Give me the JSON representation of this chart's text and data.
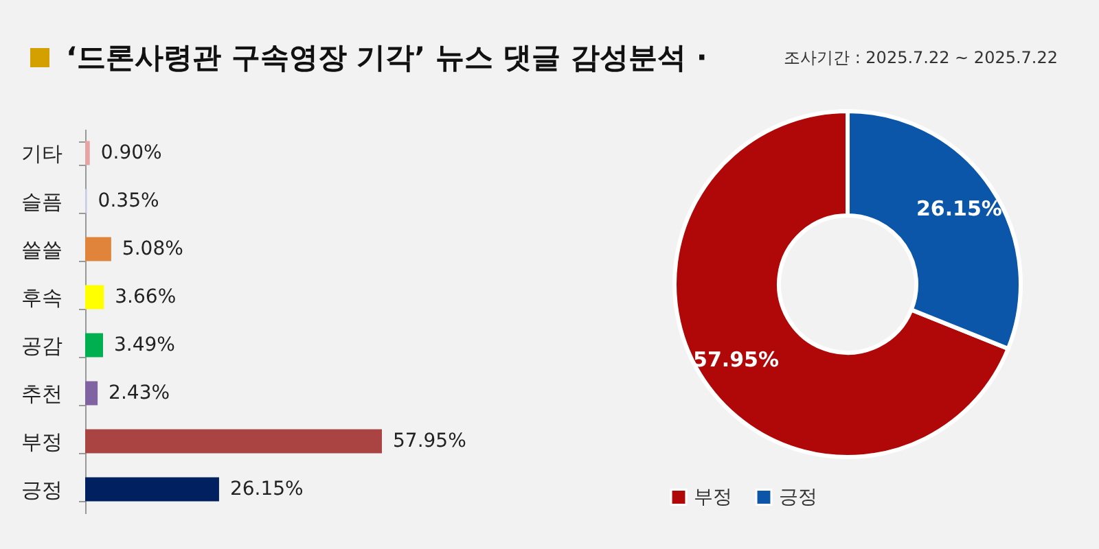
{
  "chart_data": [
    {
      "type": "bar",
      "orientation": "horizontal",
      "title": "‘드론사령관 구속영장 기각’ 뉴스 댓글 감성분석 ·",
      "categories": [
        "기타",
        "슬픔",
        "쓸쓸",
        "후속",
        "공감",
        "추천",
        "부정",
        "긍정"
      ],
      "values": [
        0.9,
        0.35,
        5.08,
        3.66,
        3.49,
        2.43,
        57.95,
        26.15
      ],
      "value_labels": [
        "0.90%",
        "0.35%",
        "5.08%",
        "3.66%",
        "3.49%",
        "2.43%",
        "57.95%",
        "26.15%"
      ],
      "colors": [
        "#e6a3a3",
        "#c5cde6",
        "#e0843c",
        "#ffff00",
        "#00b050",
        "#8064a2",
        "#a94442",
        "#002060"
      ]
    },
    {
      "type": "donut",
      "subtitle": "조사기간 : 2025.7.22 ~ 2025.7.22",
      "categories": [
        "부정",
        "긍정"
      ],
      "values": [
        57.95,
        26.15
      ],
      "value_labels": [
        "57.95%",
        "26.15%"
      ],
      "colors": [
        "#b00808",
        "#0b56a8"
      ],
      "legend": "bottom"
    }
  ]
}
